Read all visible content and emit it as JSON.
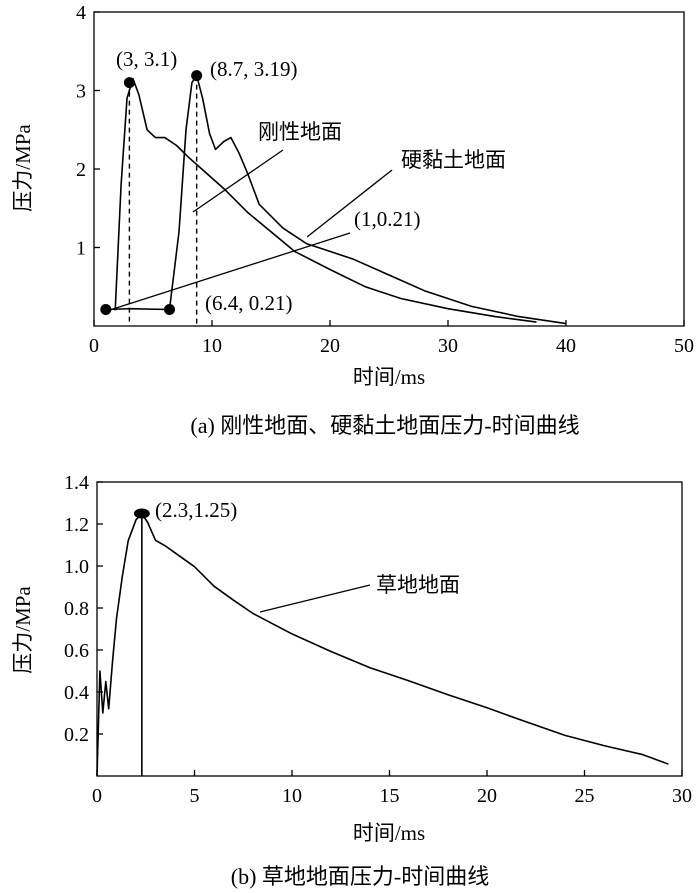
{
  "chart_data": [
    {
      "type": "line",
      "caption": "(a) 刚性地面、硬黏土地面压力-时间曲线",
      "xlabel": "时间/ms",
      "ylabel": "压力/MPa",
      "xlim": [
        0,
        50
      ],
      "ylim": [
        0,
        4
      ],
      "xticks": [
        "0",
        "10",
        "20",
        "30",
        "40",
        "50"
      ],
      "yticks": [
        "1",
        "2",
        "3",
        "4"
      ],
      "grid": false,
      "series": [
        {
          "name": "刚性地面",
          "x": [
            1.8,
            2.3,
            2.8,
            3.3,
            3.8,
            4.5,
            5.2,
            6.0,
            7.0,
            8.0,
            9.5,
            11,
            13,
            15,
            17,
            20,
            23,
            26,
            30,
            34,
            37.5
          ],
          "y": [
            0.2,
            1.8,
            2.9,
            3.15,
            2.95,
            2.5,
            2.4,
            2.4,
            2.3,
            2.15,
            1.95,
            1.75,
            1.45,
            1.2,
            0.95,
            0.72,
            0.5,
            0.35,
            0.22,
            0.12,
            0.05
          ]
        },
        {
          "name": "硬黏土地面",
          "x": [
            1.0,
            3.0,
            6.4,
            7.2,
            7.8,
            8.3,
            8.7,
            9.2,
            9.8,
            10.3,
            11.0,
            11.6,
            12.3,
            13.0,
            14.0,
            16.0,
            18.0,
            20.0,
            22.0,
            25.0,
            28.0,
            32.0,
            36.0,
            40.0
          ],
          "y": [
            0.21,
            0.22,
            0.21,
            1.2,
            2.5,
            3.1,
            3.19,
            2.9,
            2.45,
            2.25,
            2.35,
            2.4,
            2.2,
            1.95,
            1.55,
            1.25,
            1.05,
            0.95,
            0.85,
            0.65,
            0.45,
            0.25,
            0.12,
            0.03
          ]
        }
      ],
      "annotations": [
        {
          "text": "(3, 3.1)",
          "x": 3,
          "y": 3.1
        },
        {
          "text": "(8.7, 3.19)",
          "x": 8.7,
          "y": 3.19
        },
        {
          "text": "(1,0.21)",
          "x": 1,
          "y": 0.21
        },
        {
          "text": "(6.4, 0.21)",
          "x": 6.4,
          "y": 0.21
        }
      ]
    },
    {
      "type": "line",
      "caption": "(b) 草地地面压力-时间曲线",
      "xlabel": "时间/ms",
      "ylabel": "压力/MPa",
      "xlim": [
        0,
        30
      ],
      "ylim": [
        0,
        1.4
      ],
      "xticks": [
        "0",
        "5",
        "10",
        "15",
        "20",
        "25",
        "30"
      ],
      "yticks": [
        "0.2",
        "0.4",
        "0.6",
        "0.8",
        "1.0",
        "1.2",
        "1.4"
      ],
      "grid": false,
      "series": [
        {
          "name": "草地地面",
          "x": [
            0.0,
            0.15,
            0.3,
            0.45,
            0.6,
            0.8,
            1.0,
            1.3,
            1.6,
            2.0,
            2.3,
            2.6,
            3.0,
            3.5,
            4.0,
            5.0,
            6.0,
            7.0,
            8.0,
            10.0,
            12.0,
            14.0,
            16.0,
            18.0,
            20.0,
            22.0,
            24.0,
            26.0,
            28.0,
            29.3
          ],
          "y": [
            0.0,
            0.5,
            0.3,
            0.45,
            0.32,
            0.55,
            0.75,
            0.95,
            1.12,
            1.22,
            1.25,
            1.2,
            1.12,
            1.1,
            1.07,
            1.0,
            0.9,
            0.83,
            0.77,
            0.68,
            0.6,
            0.52,
            0.45,
            0.38,
            0.32,
            0.26,
            0.2,
            0.15,
            0.1,
            0.05
          ]
        }
      ],
      "annotations": [
        {
          "text": "(2.3,1.25)",
          "x": 2.3,
          "y": 1.25
        }
      ]
    }
  ]
}
